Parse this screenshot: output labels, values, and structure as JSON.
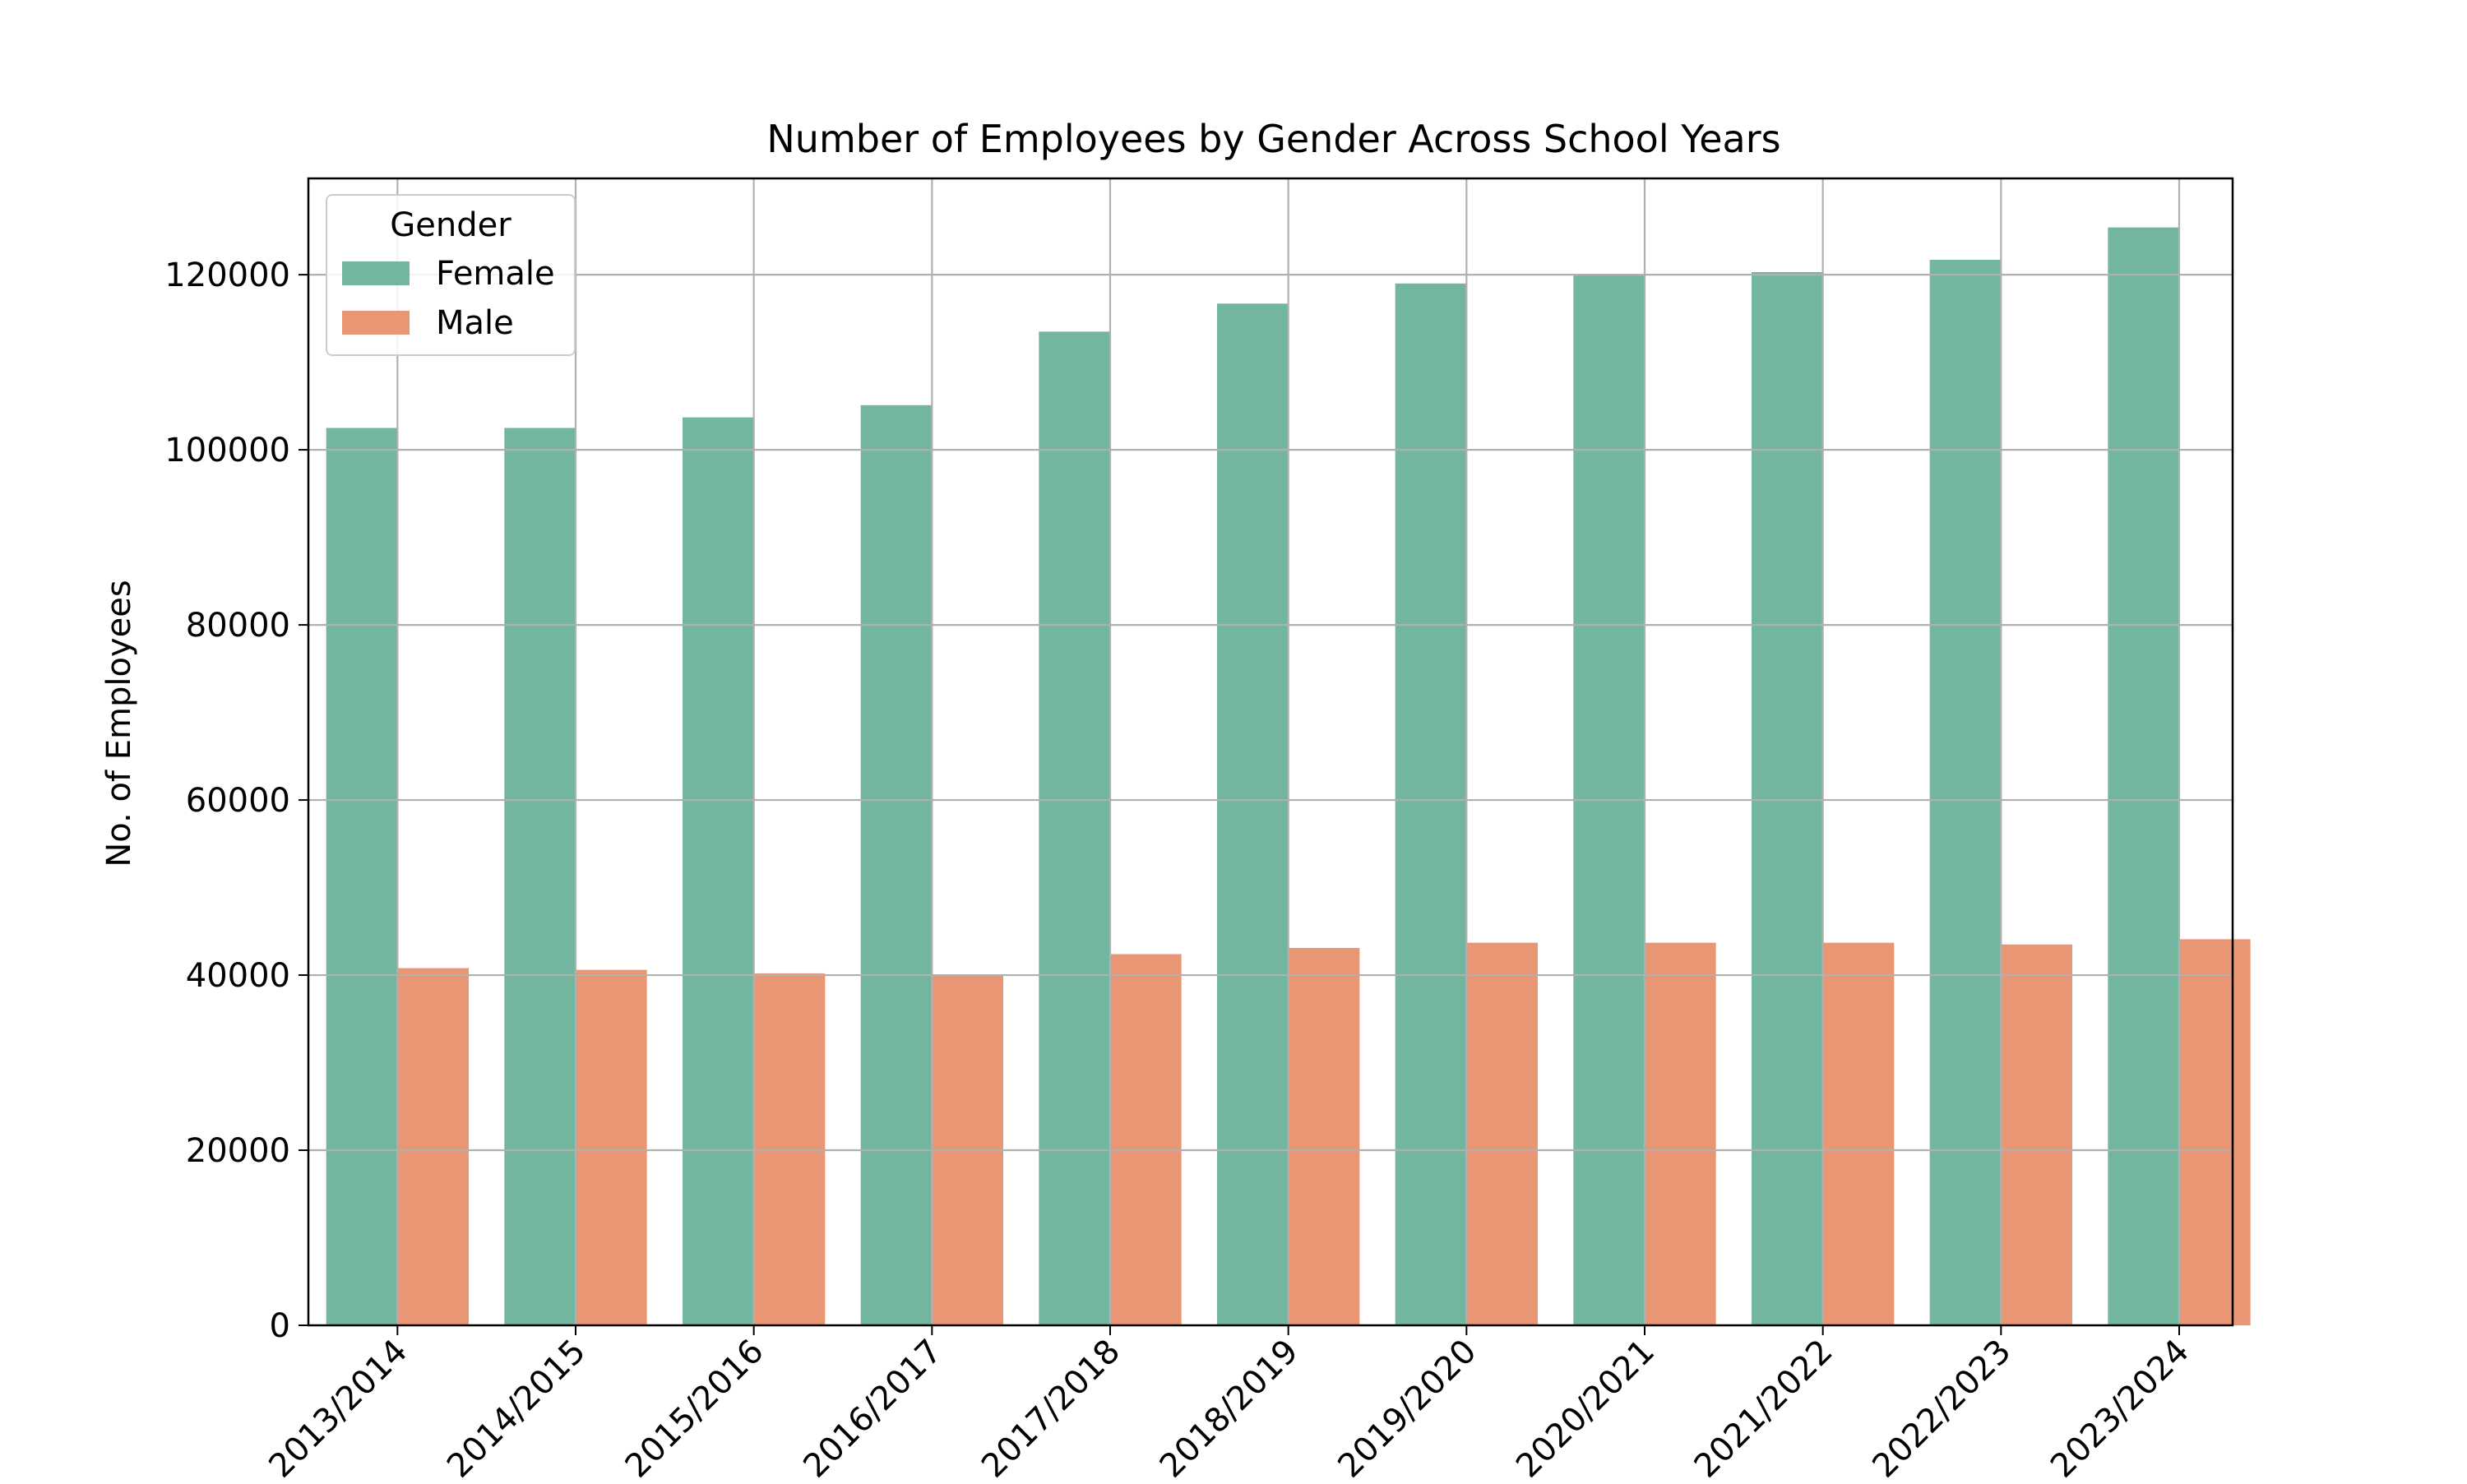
{
  "chart_data": {
    "type": "bar",
    "title": "Number of Employees by Gender Across School Years",
    "xlabel": "",
    "ylabel": "No. of Employees",
    "categories": [
      "2013/2014",
      "2014/2015",
      "2015/2016",
      "2016/2017",
      "2017/2018",
      "2018/2019",
      "2019/2020",
      "2020/2021",
      "2021/2022",
      "2022/2023",
      "2023/2024"
    ],
    "series": [
      {
        "name": "Female",
        "color": "#72b6a0",
        "values": [
          102500,
          102500,
          103700,
          105100,
          113500,
          116700,
          119000,
          120000,
          120300,
          121700,
          125400
        ]
      },
      {
        "name": "Male",
        "color": "#e99675",
        "values": [
          40800,
          40600,
          40200,
          40000,
          42400,
          43100,
          43700,
          43700,
          43700,
          43500,
          44100
        ]
      }
    ],
    "ylim": [
      0,
      131000
    ],
    "yticks": [
      0,
      20000,
      40000,
      60000,
      80000,
      100000,
      120000
    ],
    "ytick_labels": [
      "0",
      "20000",
      "40000",
      "60000",
      "80000",
      "100000",
      "120000"
    ],
    "grid": true,
    "legend": {
      "title": "Gender",
      "placement": "top-left"
    }
  }
}
